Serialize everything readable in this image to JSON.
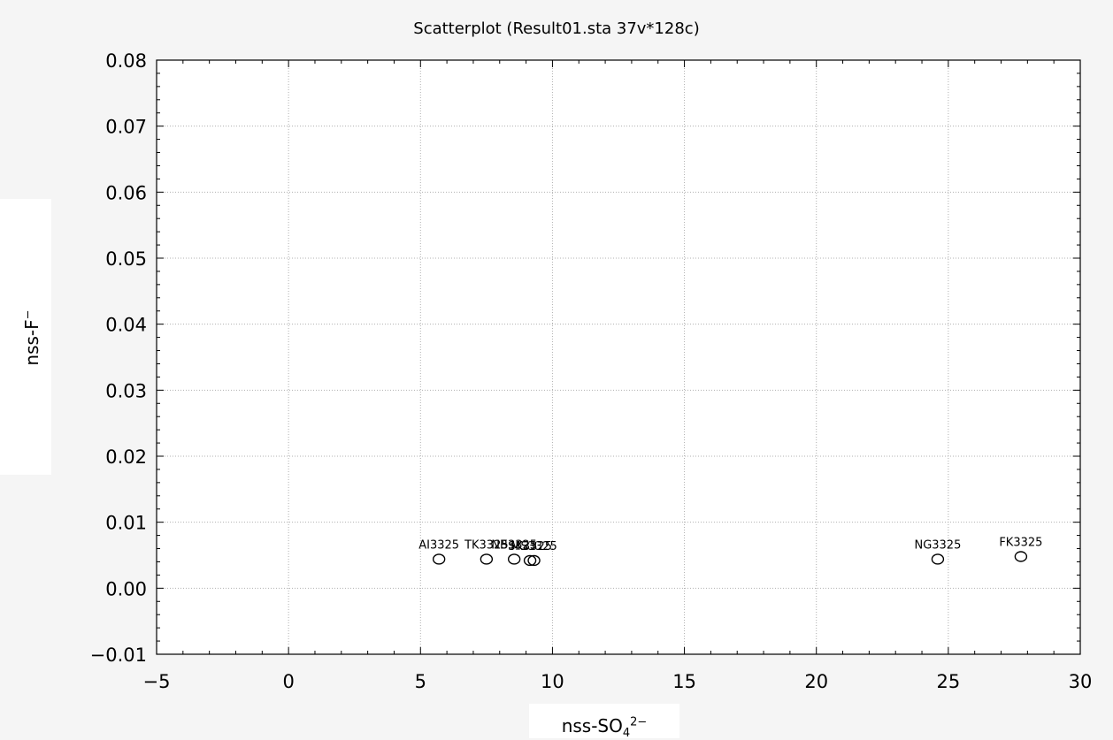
{
  "chart_data": {
    "type": "scatter",
    "title": "Scatterplot (Result01.sta 37v*128c)",
    "xlabel": {
      "base": "nss-SO",
      "sub": "4",
      "sup": "2−"
    },
    "ylabel": {
      "base": "nss-F",
      "sup": "−"
    },
    "xlim": [
      -5,
      30
    ],
    "ylim": [
      -0.01,
      0.08
    ],
    "xticks": [
      -5,
      0,
      5,
      10,
      15,
      20,
      25,
      30
    ],
    "xtick_labels": [
      "−5",
      "0",
      "5",
      "10",
      "15",
      "20",
      "25",
      "30"
    ],
    "yticks": [
      -0.01,
      0,
      0.01,
      0.02,
      0.03,
      0.04,
      0.05,
      0.06,
      0.07,
      0.08
    ],
    "ytick_labels": [
      "−0.01",
      "0.00",
      "0.01",
      "0.02",
      "0.03",
      "0.04",
      "0.05",
      "0.06",
      "0.07",
      "0.08"
    ],
    "grid": true,
    "marker": "open-circle",
    "points": [
      {
        "label": "AI3325",
        "x": 5.7,
        "y": 0.0044
      },
      {
        "label": "TK3325",
        "x": 7.5,
        "y": 0.0044
      },
      {
        "label": "NB3325",
        "x": 8.55,
        "y": 0.0044
      },
      {
        "label": "SK3325",
        "x": 9.15,
        "y": 0.0042
      },
      {
        "label": "MS3325",
        "x": 9.3,
        "y": 0.0042
      },
      {
        "label": "NG3325",
        "x": 24.6,
        "y": 0.0044
      },
      {
        "label": "FK3325",
        "x": 27.75,
        "y": 0.0048
      }
    ],
    "colors": {
      "plot_bg": "#ffffff",
      "outer_bg": "#f5f5f5",
      "grid": "#b0b0b0",
      "ink": "#000000"
    }
  }
}
